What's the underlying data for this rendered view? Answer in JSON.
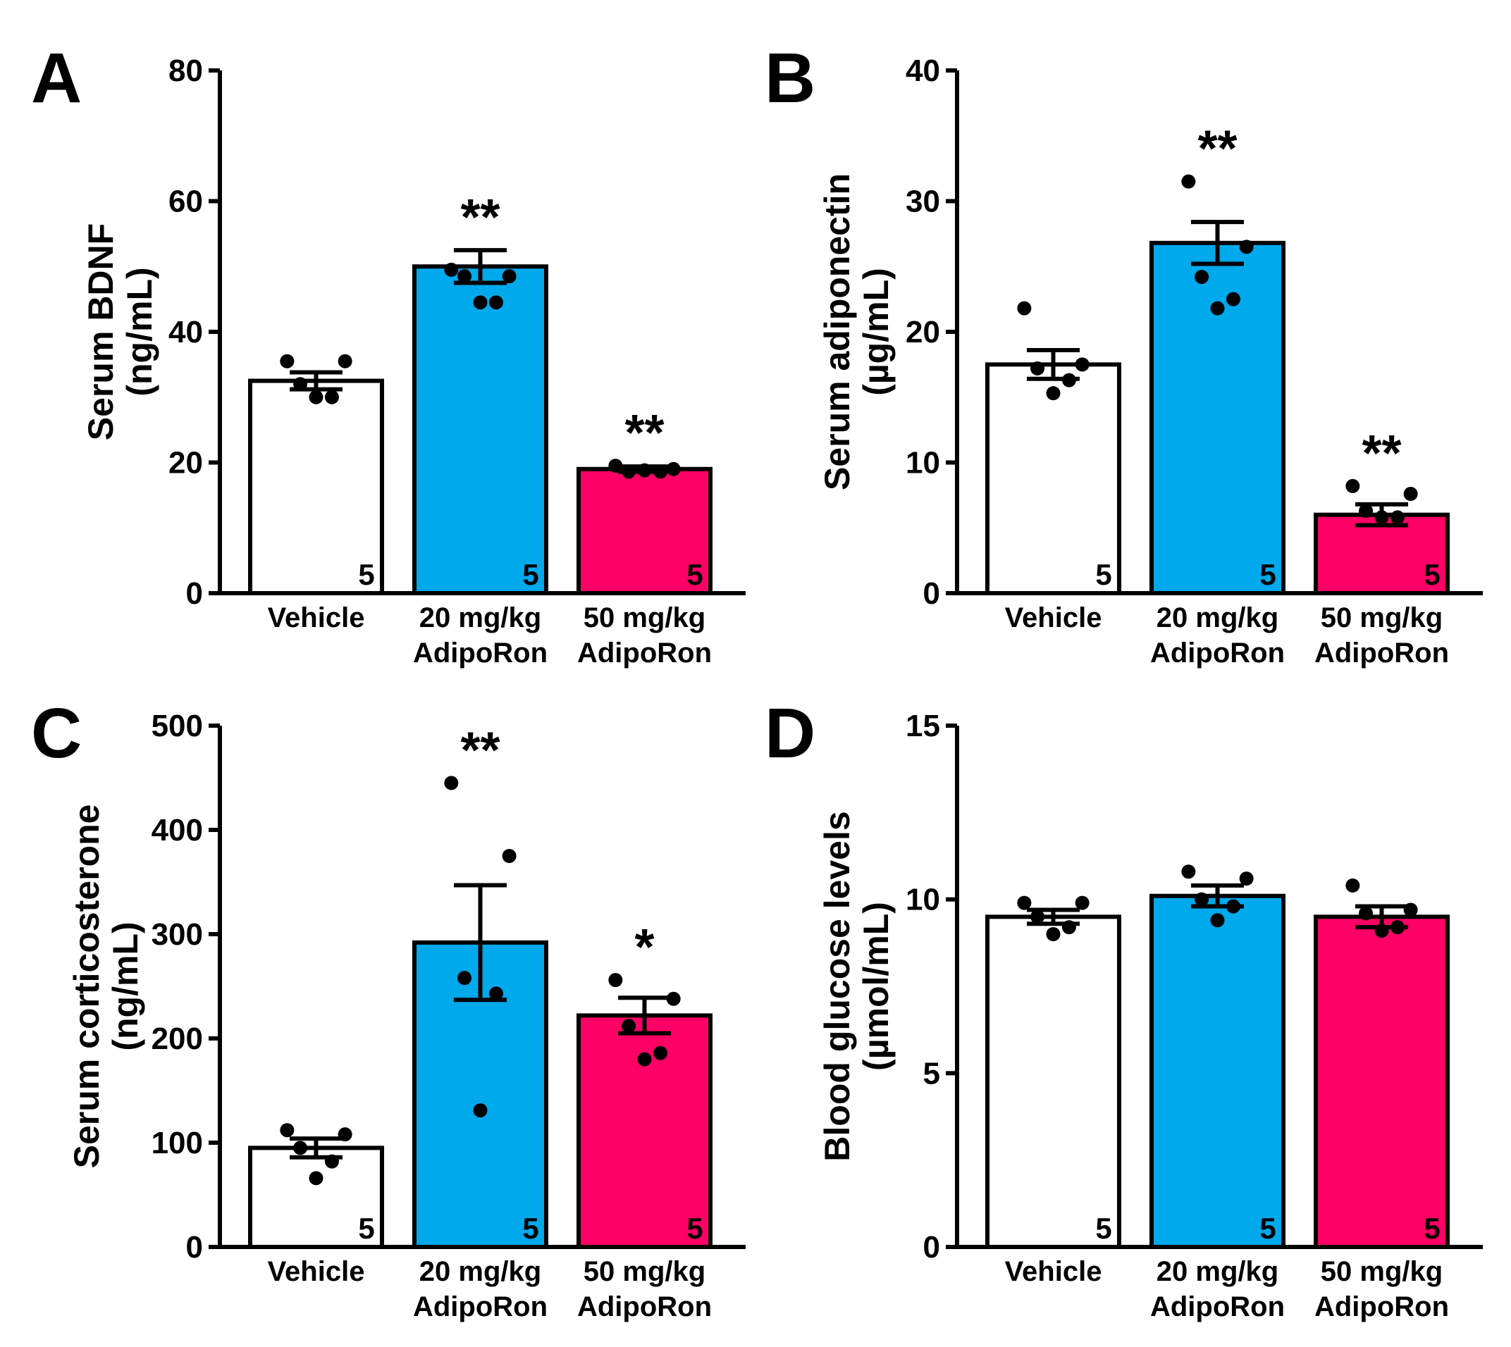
{
  "colors": {
    "vehicle": "#ffffff",
    "dose20": "#00a8ec",
    "dose50": "#fe0066",
    "ink": "#000000"
  },
  "chart_data": [
    {
      "type": "bar",
      "panel": "A",
      "categories": [
        [
          "Vehicle"
        ],
        [
          "20 mg/kg",
          "AdipoRon"
        ],
        [
          "50 mg/kg",
          "AdipoRon"
        ]
      ],
      "values": [
        32.5,
        50,
        19
      ],
      "sem": [
        1.3,
        2.5,
        0.4
      ],
      "points": [
        [
          35.5,
          35.5,
          32,
          30,
          30
        ],
        [
          49.5,
          48.5,
          48.5,
          44.5,
          44.5
        ],
        [
          19.5,
          19,
          18.6,
          18.6,
          18.8
        ]
      ],
      "n": [
        "5",
        "5",
        "5"
      ],
      "significance": [
        "",
        "**",
        "**"
      ],
      "ylabel": [
        "Serum BDNF",
        "(ng/mL)"
      ],
      "ylim": [
        0,
        80
      ],
      "yticks": [
        0,
        20,
        40,
        60,
        80
      ]
    },
    {
      "type": "bar",
      "panel": "B",
      "categories": [
        [
          "Vehicle"
        ],
        [
          "20 mg/kg",
          "AdipoRon"
        ],
        [
          "50 mg/kg",
          "AdipoRon"
        ]
      ],
      "values": [
        17.5,
        26.8,
        6
      ],
      "sem": [
        1.1,
        1.6,
        0.8
      ],
      "points": [
        [
          21.8,
          17.5,
          17.2,
          16.3,
          15.3
        ],
        [
          31.5,
          26.5,
          24.2,
          22.5,
          21.8
        ],
        [
          8.2,
          7.6,
          6.3,
          5.8,
          5.8
        ]
      ],
      "n": [
        "5",
        "5",
        "5"
      ],
      "significance": [
        "",
        "**",
        "**"
      ],
      "ylabel": [
        "Serum adiponectin",
        "(µg/mL)"
      ],
      "ylim": [
        0,
        40
      ],
      "yticks": [
        0,
        10,
        20,
        30,
        40
      ]
    },
    {
      "type": "bar",
      "panel": "C",
      "categories": [
        [
          "Vehicle"
        ],
        [
          "20 mg/kg",
          "AdipoRon"
        ],
        [
          "50 mg/kg",
          "AdipoRon"
        ]
      ],
      "values": [
        95,
        292,
        222
      ],
      "sem": [
        9,
        55,
        17
      ],
      "points": [
        [
          112,
          108,
          95,
          82,
          66
        ],
        [
          445,
          375,
          258,
          243,
          131
        ],
        [
          256,
          238,
          212,
          186,
          180
        ]
      ],
      "n": [
        "5",
        "5",
        "5"
      ],
      "significance": [
        "",
        "**",
        "*"
      ],
      "ylabel": [
        "Serum corticosterone",
        "(ng/mL)"
      ],
      "ylim": [
        0,
        500
      ],
      "yticks": [
        0,
        100,
        200,
        300,
        400,
        500
      ]
    },
    {
      "type": "bar",
      "panel": "D",
      "categories": [
        [
          "Vehicle"
        ],
        [
          "20 mg/kg",
          "AdipoRon"
        ],
        [
          "50 mg/kg",
          "AdipoRon"
        ]
      ],
      "values": [
        9.5,
        10.1,
        9.5
      ],
      "sem": [
        0.2,
        0.3,
        0.3
      ],
      "points": [
        [
          9.9,
          9.9,
          9.5,
          9.2,
          9.0
        ],
        [
          10.8,
          10.6,
          10.0,
          9.8,
          9.4
        ],
        [
          10.4,
          9.7,
          9.6,
          9.2,
          9.1
        ]
      ],
      "n": [
        "5",
        "5",
        "5"
      ],
      "significance": [
        "",
        "",
        ""
      ],
      "ylabel": [
        "Blood glucose levels",
        "(µmol/mL)"
      ],
      "ylim": [
        0,
        15
      ],
      "yticks": [
        0,
        5,
        10,
        15
      ]
    }
  ]
}
